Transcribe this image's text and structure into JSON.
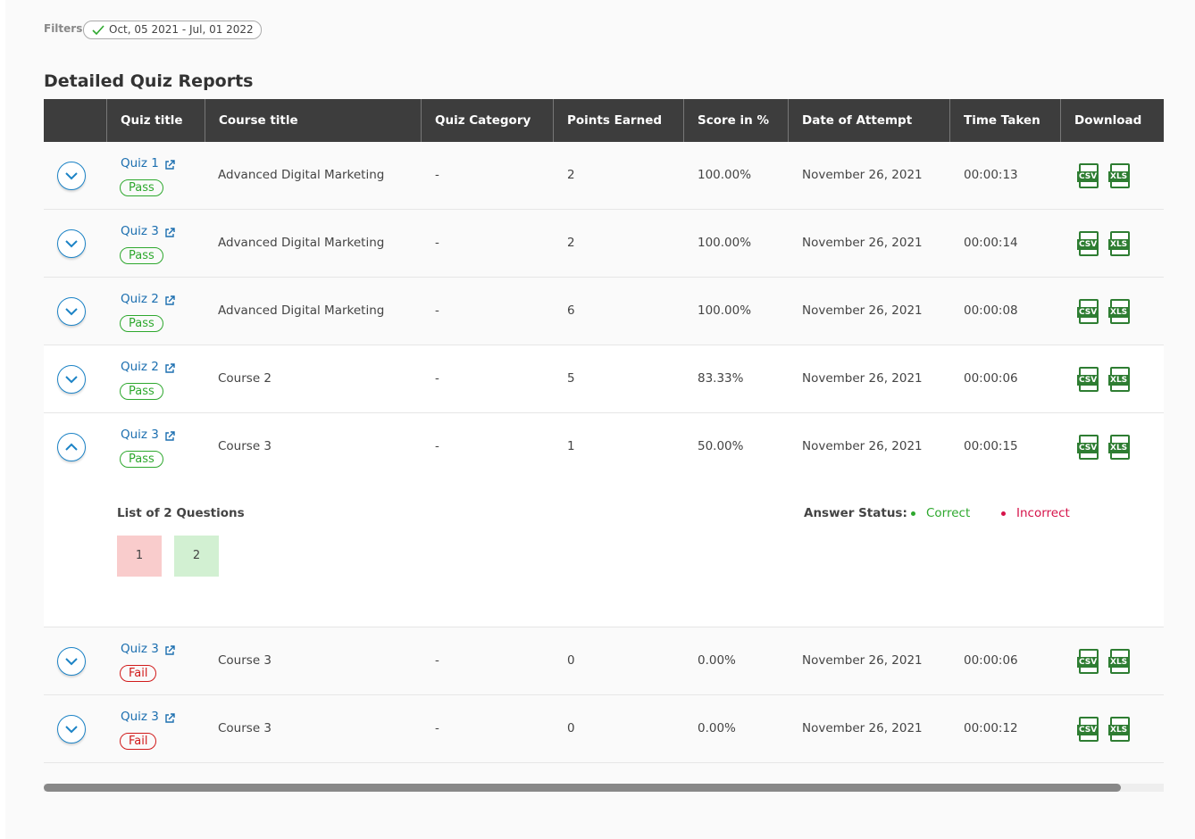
{
  "filters": {
    "label": "Filters",
    "date_range": "Oct, 05 2021 - Jul, 01 2022"
  },
  "title": "Detailed Quiz Reports",
  "download": {
    "csv": "CSV",
    "xls": "XLS"
  },
  "table": {
    "headers": [
      "Quiz title",
      "Course title",
      "Quiz Category",
      "Points Earned",
      "Score in %",
      "Date of Attempt",
      "Time Taken",
      "Download"
    ],
    "rows": [
      {
        "quiz": "Quiz 1",
        "status": "Pass",
        "status_color": "#2ea82e",
        "course": "Advanced Digital Marketing",
        "category": "-",
        "points": "2",
        "score": "100.00%",
        "date": "November 26, 2021",
        "time": "00:00:13"
      },
      {
        "quiz": "Quiz 3",
        "status": "Pass",
        "status_color": "#2ea82e",
        "course": "Advanced Digital Marketing",
        "category": "-",
        "points": "2",
        "score": "100.00%",
        "date": "November 26, 2021",
        "time": "00:00:14"
      },
      {
        "quiz": "Quiz 2",
        "status": "Pass",
        "status_color": "#2ea82e",
        "course": "Advanced Digital Marketing",
        "category": "-",
        "points": "6",
        "score": "100.00%",
        "date": "November 26, 2021",
        "time": "00:00:08"
      },
      {
        "quiz": "Quiz 2",
        "status": "Pass",
        "status_color": "#2ea82e",
        "course": "Course 2",
        "category": "-",
        "points": "5",
        "score": "83.33%",
        "date": "November 26, 2021",
        "time": "00:00:06"
      },
      {
        "quiz": "Quiz 3",
        "status": "Pass",
        "status_color": "#2ea82e",
        "course": "Course 3",
        "category": "-",
        "points": "1",
        "score": "50.00%",
        "date": "November 26, 2021",
        "time": "00:00:15",
        "details": {
          "title": "List of 2 Questions",
          "questions": [
            {
              "number": "1",
              "color": "#f9cccc"
            },
            {
              "number": "2",
              "color": "#d2f0d2"
            }
          ],
          "status_label": "Answer Status:",
          "legend": [
            {
              "text": "Correct",
              "color": "#2ea82e"
            },
            {
              "text": "Incorrect",
              "color": "#d6134a"
            }
          ]
        }
      },
      {
        "quiz": "Quiz 3",
        "status": "Fail",
        "status_color": "#d11a1a",
        "course": "Course 3",
        "category": "-",
        "points": "0",
        "score": "0.00%",
        "date": "November 26, 2021",
        "time": "00:00:06"
      },
      {
        "quiz": "Quiz 3",
        "status": "Fail",
        "status_color": "#d11a1a",
        "course": "Course 3",
        "category": "-",
        "points": "0",
        "score": "0.00%",
        "date": "November 26, 2021",
        "time": "00:00:12"
      }
    ]
  }
}
